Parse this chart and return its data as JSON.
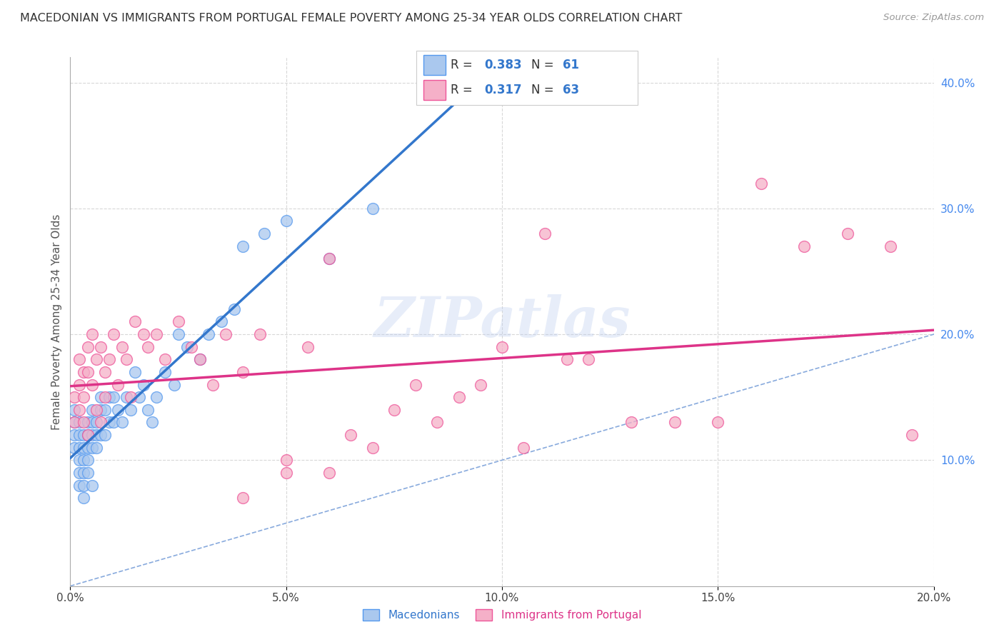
{
  "title": "MACEDONIAN VS IMMIGRANTS FROM PORTUGAL FEMALE POVERTY AMONG 25-34 YEAR OLDS CORRELATION CHART",
  "source": "Source: ZipAtlas.com",
  "ylabel": "Female Poverty Among 25-34 Year Olds",
  "xlim": [
    0.0,
    0.2
  ],
  "ylim": [
    0.0,
    0.42
  ],
  "xticks": [
    0.0,
    0.05,
    0.1,
    0.15,
    0.2
  ],
  "yticks_right": [
    0.1,
    0.2,
    0.3,
    0.4
  ],
  "background_color": "#ffffff",
  "grid_color": "#d8d8d8",
  "watermark": "ZIPatlas",
  "macedonian_color": "#aac8ee",
  "portuguese_color": "#f5b0c8",
  "macedonian_edge_color": "#5599ee",
  "portuguese_edge_color": "#ee5599",
  "macedonian_line_color": "#3377cc",
  "portuguese_line_color": "#dd3388",
  "diagonal_color": "#88aadd",
  "R_macedonian": 0.383,
  "N_macedonian": 61,
  "R_portuguese": 0.317,
  "N_portuguese": 63,
  "macedonian_x": [
    0.001,
    0.001,
    0.001,
    0.001,
    0.002,
    0.002,
    0.002,
    0.002,
    0.002,
    0.002,
    0.003,
    0.003,
    0.003,
    0.003,
    0.003,
    0.003,
    0.004,
    0.004,
    0.004,
    0.004,
    0.004,
    0.005,
    0.005,
    0.005,
    0.005,
    0.005,
    0.006,
    0.006,
    0.006,
    0.007,
    0.007,
    0.007,
    0.008,
    0.008,
    0.009,
    0.009,
    0.01,
    0.01,
    0.011,
    0.012,
    0.013,
    0.014,
    0.015,
    0.016,
    0.017,
    0.018,
    0.019,
    0.02,
    0.022,
    0.024,
    0.025,
    0.027,
    0.03,
    0.032,
    0.035,
    0.038,
    0.04,
    0.045,
    0.05,
    0.06,
    0.07
  ],
  "macedonian_y": [
    0.13,
    0.14,
    0.12,
    0.11,
    0.13,
    0.12,
    0.11,
    0.1,
    0.09,
    0.08,
    0.12,
    0.11,
    0.1,
    0.09,
    0.08,
    0.07,
    0.13,
    0.12,
    0.11,
    0.1,
    0.09,
    0.14,
    0.13,
    0.12,
    0.11,
    0.08,
    0.13,
    0.12,
    0.11,
    0.15,
    0.14,
    0.12,
    0.14,
    0.12,
    0.15,
    0.13,
    0.15,
    0.13,
    0.14,
    0.13,
    0.15,
    0.14,
    0.17,
    0.15,
    0.16,
    0.14,
    0.13,
    0.15,
    0.17,
    0.16,
    0.2,
    0.19,
    0.18,
    0.2,
    0.21,
    0.22,
    0.27,
    0.28,
    0.29,
    0.26,
    0.3
  ],
  "portuguese_x": [
    0.001,
    0.001,
    0.002,
    0.002,
    0.002,
    0.003,
    0.003,
    0.003,
    0.004,
    0.004,
    0.004,
    0.005,
    0.005,
    0.006,
    0.006,
    0.007,
    0.007,
    0.008,
    0.008,
    0.009,
    0.01,
    0.011,
    0.012,
    0.013,
    0.014,
    0.015,
    0.017,
    0.018,
    0.02,
    0.022,
    0.025,
    0.028,
    0.03,
    0.033,
    0.036,
    0.04,
    0.044,
    0.05,
    0.055,
    0.06,
    0.065,
    0.07,
    0.075,
    0.08,
    0.085,
    0.09,
    0.095,
    0.1,
    0.105,
    0.11,
    0.115,
    0.12,
    0.13,
    0.14,
    0.15,
    0.16,
    0.17,
    0.18,
    0.19,
    0.195,
    0.04,
    0.05,
    0.06
  ],
  "portuguese_y": [
    0.15,
    0.13,
    0.18,
    0.16,
    0.14,
    0.17,
    0.15,
    0.13,
    0.19,
    0.17,
    0.12,
    0.16,
    0.2,
    0.18,
    0.14,
    0.19,
    0.13,
    0.17,
    0.15,
    0.18,
    0.2,
    0.16,
    0.19,
    0.18,
    0.15,
    0.21,
    0.2,
    0.19,
    0.2,
    0.18,
    0.21,
    0.19,
    0.18,
    0.16,
    0.2,
    0.17,
    0.2,
    0.1,
    0.19,
    0.09,
    0.12,
    0.11,
    0.14,
    0.16,
    0.13,
    0.15,
    0.16,
    0.19,
    0.11,
    0.28,
    0.18,
    0.18,
    0.13,
    0.13,
    0.13,
    0.32,
    0.27,
    0.28,
    0.27,
    0.12,
    0.07,
    0.09,
    0.26
  ]
}
